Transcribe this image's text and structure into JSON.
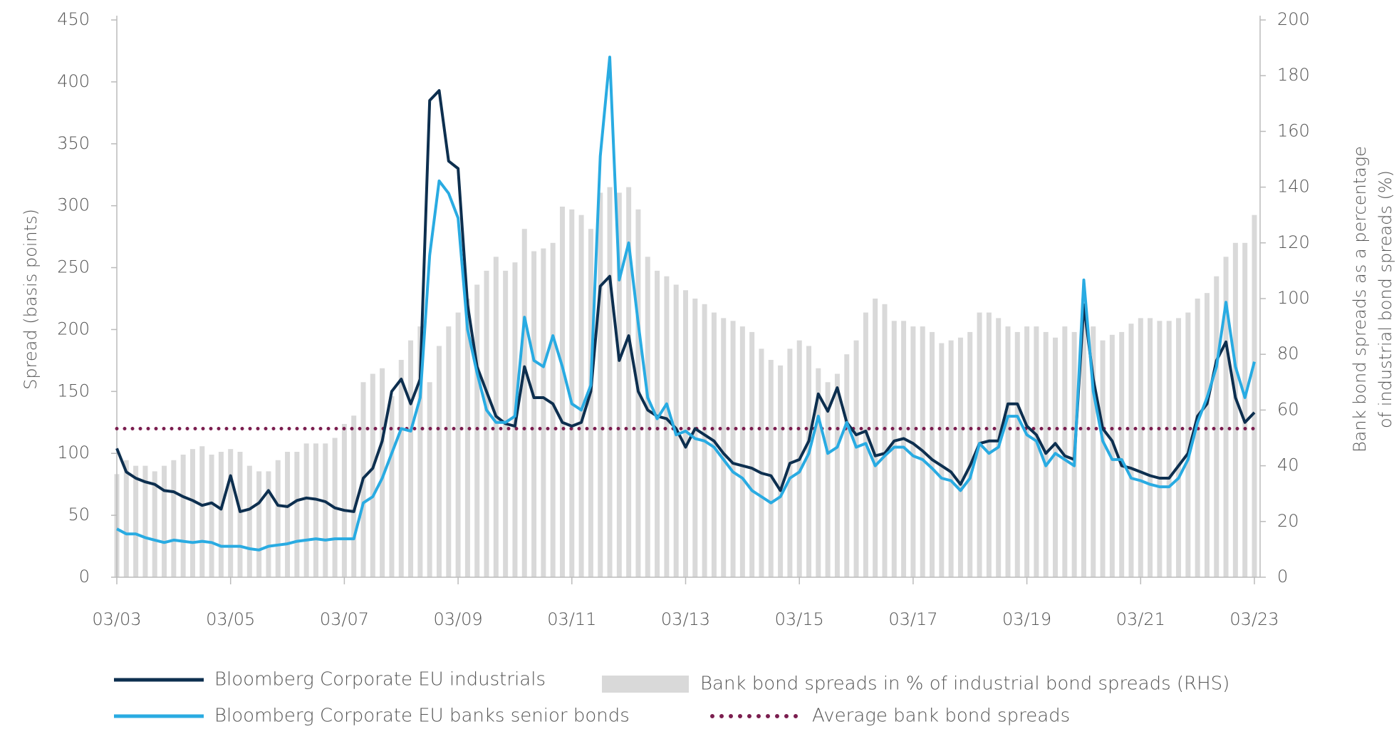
{
  "chart_data": {
    "type": "line",
    "y_label": "Spread (basis points)",
    "y2_label": [
      "Bank bond spreads as a percentage",
      "of industrial bond spreads (%)"
    ],
    "x": [
      "2003-03",
      "2003-05",
      "2003-07",
      "2003-09",
      "2003-11",
      "2004-01",
      "2004-03",
      "2004-05",
      "2004-07",
      "2004-09",
      "2004-11",
      "2005-01",
      "2005-03",
      "2005-05",
      "2005-07",
      "2005-09",
      "2005-11",
      "2006-01",
      "2006-03",
      "2006-05",
      "2006-07",
      "2006-09",
      "2006-11",
      "2007-01",
      "2007-03",
      "2007-05",
      "2007-07",
      "2007-09",
      "2007-11",
      "2008-01",
      "2008-03",
      "2008-05",
      "2008-07",
      "2008-09",
      "2008-11",
      "2009-01",
      "2009-03",
      "2009-05",
      "2009-07",
      "2009-09",
      "2009-11",
      "2010-01",
      "2010-03",
      "2010-05",
      "2010-07",
      "2010-09",
      "2010-11",
      "2011-01",
      "2011-03",
      "2011-05",
      "2011-07",
      "2011-09",
      "2011-11",
      "2012-01",
      "2012-03",
      "2012-05",
      "2012-07",
      "2012-09",
      "2012-11",
      "2013-01",
      "2013-03",
      "2013-05",
      "2013-07",
      "2013-09",
      "2013-11",
      "2014-01",
      "2014-03",
      "2014-05",
      "2014-07",
      "2014-09",
      "2014-11",
      "2015-01",
      "2015-03",
      "2015-05",
      "2015-07",
      "2015-09",
      "2015-11",
      "2016-01",
      "2016-03",
      "2016-05",
      "2016-07",
      "2016-09",
      "2016-11",
      "2017-01",
      "2017-03",
      "2017-05",
      "2017-07",
      "2017-09",
      "2017-11",
      "2018-01",
      "2018-03",
      "2018-05",
      "2018-07",
      "2018-09",
      "2018-11",
      "2019-01",
      "2019-03",
      "2019-05",
      "2019-07",
      "2019-09",
      "2019-11",
      "2020-01",
      "2020-03",
      "2020-05",
      "2020-07",
      "2020-09",
      "2020-11",
      "2021-01",
      "2021-03",
      "2021-05",
      "2021-07",
      "2021-09",
      "2021-11",
      "2022-01",
      "2022-03",
      "2022-05",
      "2022-07",
      "2022-09",
      "2022-11",
      "2023-01",
      "2023-03"
    ],
    "series": [
      {
        "name": "Bank bond spreads in % of industrial bond spreads (RHS)",
        "type": "bar",
        "axis": "y2",
        "color": "#d9d9d9",
        "values": [
          37,
          42,
          40,
          40,
          38,
          40,
          42,
          44,
          46,
          47,
          44,
          45,
          46,
          45,
          40,
          38,
          38,
          42,
          45,
          45,
          48,
          48,
          48,
          50,
          55,
          58,
          70,
          73,
          75,
          65,
          78,
          85,
          90,
          70,
          83,
          90,
          95,
          100,
          105,
          110,
          115,
          110,
          113,
          125,
          117,
          118,
          120,
          133,
          132,
          130,
          125,
          138,
          140,
          138,
          140,
          132,
          115,
          110,
          108,
          105,
          103,
          100,
          98,
          95,
          93,
          92,
          90,
          88,
          82,
          78,
          76,
          82,
          85,
          83,
          75,
          70,
          73,
          80,
          85,
          95,
          100,
          98,
          92,
          92,
          90,
          90,
          88,
          84,
          85,
          86,
          88,
          95,
          95,
          93,
          90,
          88,
          90,
          90,
          88,
          86,
          90,
          88,
          100,
          90,
          85,
          87,
          88,
          91,
          93,
          93,
          92,
          92,
          93,
          95,
          100,
          102,
          108,
          115,
          120,
          120,
          130
        ]
      },
      {
        "name": "Bloomberg Corporate EU industrials",
        "type": "line",
        "color": "#0d2f4f",
        "values": [
          104,
          85,
          80,
          77,
          75,
          70,
          69,
          65,
          62,
          58,
          60,
          55,
          82,
          53,
          55,
          60,
          70,
          58,
          57,
          62,
          64,
          63,
          61,
          56,
          54,
          53,
          80,
          88,
          110,
          150,
          160,
          140,
          160,
          385,
          393,
          336,
          330,
          220,
          170,
          150,
          130,
          124,
          122,
          170,
          145,
          145,
          140,
          125,
          122,
          125,
          150,
          235,
          243,
          175,
          195,
          150,
          135,
          130,
          128,
          120,
          105,
          120,
          115,
          110,
          100,
          92,
          90,
          88,
          84,
          82,
          70,
          92,
          95,
          110,
          148,
          134,
          153,
          125,
          115,
          118,
          98,
          100,
          110,
          112,
          108,
          102,
          95,
          90,
          85,
          75,
          90,
          108,
          110,
          110,
          140,
          140,
          122,
          115,
          100,
          108,
          98,
          95,
          220,
          160,
          120,
          110,
          90,
          88,
          85,
          82,
          80,
          80,
          90,
          100,
          130,
          140,
          175,
          190,
          145,
          125,
          133
        ]
      },
      {
        "name": "Bloomberg Corporate EU banks senior bonds",
        "type": "line",
        "color": "#29abe2",
        "values": [
          39,
          35,
          35,
          32,
          30,
          28,
          30,
          29,
          28,
          29,
          28,
          25,
          25,
          25,
          23,
          22,
          25,
          26,
          27,
          29,
          30,
          31,
          30,
          31,
          31,
          31,
          60,
          65,
          80,
          100,
          120,
          118,
          145,
          260,
          320,
          310,
          290,
          200,
          165,
          135,
          125,
          125,
          130,
          210,
          175,
          170,
          195,
          170,
          140,
          135,
          155,
          340,
          420,
          240,
          270,
          205,
          145,
          128,
          140,
          115,
          118,
          112,
          110,
          105,
          95,
          85,
          80,
          70,
          65,
          60,
          65,
          80,
          85,
          100,
          130,
          100,
          105,
          125,
          105,
          108,
          90,
          98,
          105,
          105,
          98,
          95,
          88,
          80,
          78,
          70,
          80,
          108,
          100,
          105,
          130,
          130,
          115,
          110,
          90,
          100,
          95,
          90,
          240,
          150,
          110,
          95,
          95,
          80,
          78,
          75,
          73,
          73,
          80,
          95,
          125,
          145,
          170,
          222,
          170,
          145,
          174
        ]
      }
    ],
    "reference_line": {
      "name": "Average bank bond spreads",
      "value": 120,
      "color": "#7b1e4f"
    },
    "xlim": [
      "2003-03",
      "2023-03"
    ],
    "xticks": [
      {
        "value": "2003-03",
        "label": "03/03"
      },
      {
        "value": "2005-03",
        "label": "03/05"
      },
      {
        "value": "2007-03",
        "label": "03/07"
      },
      {
        "value": "2009-03",
        "label": "03/09"
      },
      {
        "value": "2011-03",
        "label": "03/11"
      },
      {
        "value": "2013-03",
        "label": "03/13"
      },
      {
        "value": "2015-03",
        "label": "03/15"
      },
      {
        "value": "2017-03",
        "label": "03/17"
      },
      {
        "value": "2019-03",
        "label": "03/19"
      },
      {
        "value": "2021-03",
        "label": "03/21"
      },
      {
        "value": "2023-03",
        "label": "03/23"
      }
    ],
    "ylim": [
      0,
      450
    ],
    "yticks": [
      0,
      50,
      100,
      150,
      200,
      250,
      300,
      350,
      400,
      450
    ],
    "y2lim": [
      0,
      200
    ],
    "y2ticks": [
      0,
      20,
      40,
      60,
      80,
      100,
      120,
      140,
      160,
      180,
      200
    ],
    "grid": false
  }
}
